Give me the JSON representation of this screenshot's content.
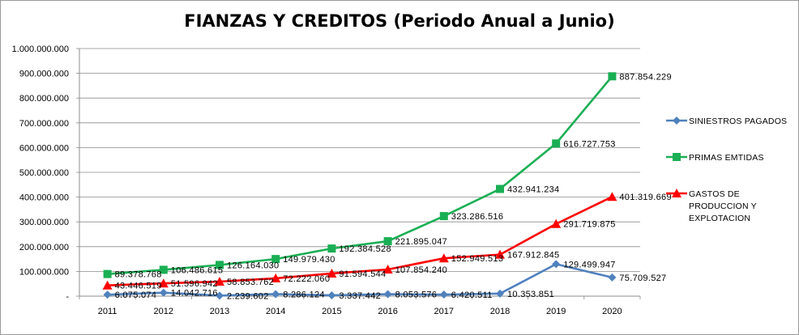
{
  "chart_data": {
    "type": "line",
    "title": "FIANZAS Y CREDITOS (Periodo Anual a Junio)",
    "xlabel": "",
    "ylabel": "",
    "ylim": [
      0,
      1000000000
    ],
    "y_ticks": [
      "-",
      "100.000.000",
      "200.000.000",
      "300.000.000",
      "400.000.000",
      "500.000.000",
      "600.000.000",
      "700.000.000",
      "800.000.000",
      "900.000.000",
      "1.000.000.000"
    ],
    "y_tick_values": [
      0,
      100000000,
      200000000,
      300000000,
      400000000,
      500000000,
      600000000,
      700000000,
      800000000,
      900000000,
      1000000000
    ],
    "categories": [
      "2011",
      "2012",
      "2013",
      "2014",
      "2015",
      "2016",
      "2017",
      "2018",
      "2019",
      "2020"
    ],
    "grid": "horizontal",
    "legend_position": "right",
    "series": [
      {
        "name": "SINIESTROS PAGADOS",
        "color": "#4f81bd",
        "marker": "diamond",
        "values": [
          6075074,
          14042716,
          2239602,
          8286124,
          3337442,
          8053576,
          6420511,
          10353851,
          129499947,
          75709527
        ],
        "labels": [
          "6.075.074",
          "14.042.716",
          "2.239.602",
          "8.286.124",
          "3.337.442",
          "8.053.576",
          "6.420.511",
          "10.353.851",
          "129.499.947",
          "75.709.527"
        ]
      },
      {
        "name": "PRIMAS EMTIDAS",
        "color": "#1aaf54",
        "marker": "square",
        "values": [
          89378768,
          106486615,
          126164030,
          149979430,
          192384528,
          221895047,
          323286516,
          432941234,
          616727753,
          887854229
        ],
        "labels": [
          "89.378.768",
          "106.486.615",
          "126.164.030",
          "149.979.430",
          "192.384.528",
          "221.895.047",
          "323.286.516",
          "432.941.234",
          "616.727.753",
          "887.854.229"
        ]
      },
      {
        "name": "GASTOS DE PRODUCCION Y EXPLOTACION",
        "name_lines": [
          "GASTOS DE",
          "PRODUCCION Y",
          "EXPLOTACION"
        ],
        "color": "#ff0000",
        "marker": "triangle",
        "values": [
          43446519,
          51596942,
          58853762,
          72222060,
          91594544,
          107854240,
          152949513,
          167912845,
          291719875,
          401319669
        ],
        "labels": [
          "43.446.519",
          "51.596.942",
          "58.853.762",
          "72.222.060",
          "91.594.544",
          "107.854.240",
          "152.949.513",
          "167.912.845",
          "291.719.875",
          "401.319.669"
        ]
      }
    ]
  }
}
